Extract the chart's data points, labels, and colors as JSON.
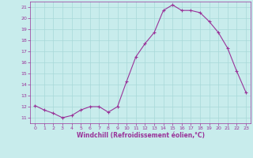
{
  "x": [
    0,
    1,
    2,
    3,
    4,
    5,
    6,
    7,
    8,
    9,
    10,
    11,
    12,
    13,
    14,
    15,
    16,
    17,
    18,
    19,
    20,
    21,
    22,
    23
  ],
  "y": [
    12.1,
    11.7,
    11.4,
    11.0,
    11.2,
    11.7,
    12.0,
    12.0,
    11.5,
    12.0,
    14.3,
    16.5,
    17.7,
    18.7,
    20.7,
    21.2,
    20.7,
    20.7,
    20.5,
    19.7,
    18.7,
    17.3,
    15.2,
    13.3
  ],
  "line_color": "#993399",
  "marker": "+",
  "marker_size": 3,
  "bg_color": "#c8ecec",
  "grid_color": "#a8d8d8",
  "xlabel": "Windchill (Refroidissement éolien,°C)",
  "xlabel_color": "#993399",
  "tick_color": "#993399",
  "ylim": [
    10.5,
    21.5
  ],
  "xlim": [
    -0.5,
    23.5
  ],
  "yticks": [
    11,
    12,
    13,
    14,
    15,
    16,
    17,
    18,
    19,
    20,
    21
  ],
  "xticks": [
    0,
    1,
    2,
    3,
    4,
    5,
    6,
    7,
    8,
    9,
    10,
    11,
    12,
    13,
    14,
    15,
    16,
    17,
    18,
    19,
    20,
    21,
    22,
    23
  ]
}
